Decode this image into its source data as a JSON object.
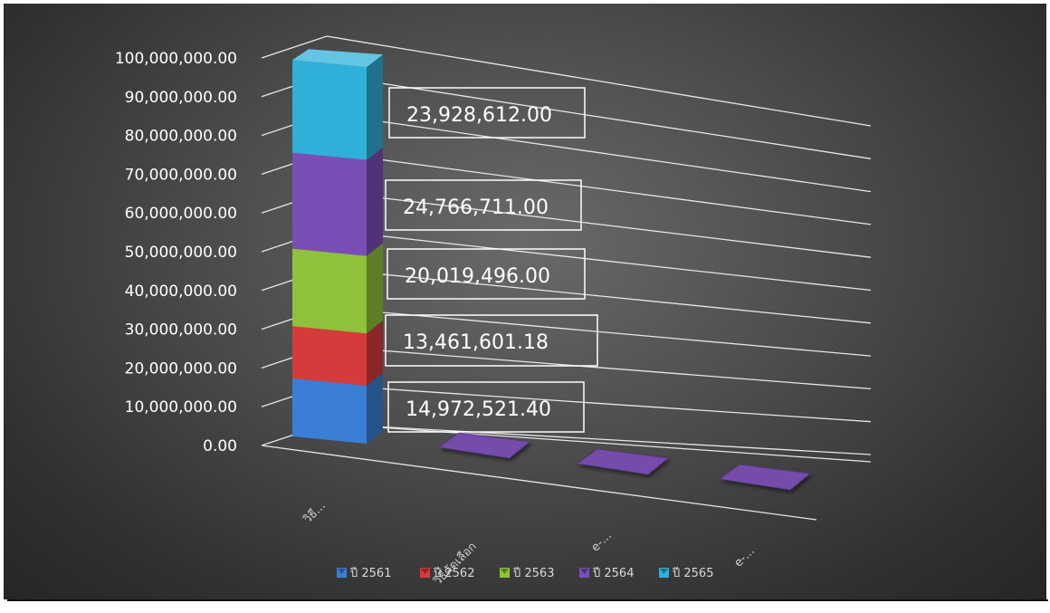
{
  "chart_data": {
    "type": "bar",
    "stacked": true,
    "three_d": true,
    "categories": [
      "วิธี...",
      "วิธีคัดเลือก",
      "e-...",
      "e-..."
    ],
    "ylim": [
      0,
      100000000
    ],
    "y_ticks": [
      "0.00",
      "10,000,000.00",
      "20,000,000.00",
      "30,000,000.00",
      "40,000,000.00",
      "50,000,000.00",
      "60,000,000.00",
      "70,000,000.00",
      "80,000,000.00",
      "90,000,000.00",
      "100,000,000.00"
    ],
    "series": [
      {
        "name": "ปี 2561",
        "color": "#3a7fd5",
        "values": [
          14972521.4,
          0,
          0,
          0
        ],
        "labels": [
          "14,972,521.40",
          "",
          "",
          ""
        ]
      },
      {
        "name": "ปี 2562",
        "color": "#d63b3b",
        "values": [
          13461601.18,
          0,
          0,
          0
        ],
        "labels": [
          "13,461,601.18",
          "",
          "",
          ""
        ]
      },
      {
        "name": "ปี 2563",
        "color": "#8fc13a",
        "values": [
          20019496.0,
          0,
          0,
          0
        ],
        "labels": [
          "20,019,496.00",
          "",
          "",
          ""
        ]
      },
      {
        "name": "ปี 2564",
        "color": "#7a4fb5",
        "values": [
          24766711.0,
          0,
          0,
          0
        ],
        "labels": [
          "24,766,711.00",
          "",
          "",
          ""
        ]
      },
      {
        "name": "ปี 2565",
        "color": "#2fb0d9",
        "values": [
          23928612.0,
          0,
          0,
          0
        ],
        "labels": [
          "23,928,612.00",
          "",
          "",
          ""
        ]
      }
    ],
    "grid": true,
    "legend": "bottom"
  }
}
